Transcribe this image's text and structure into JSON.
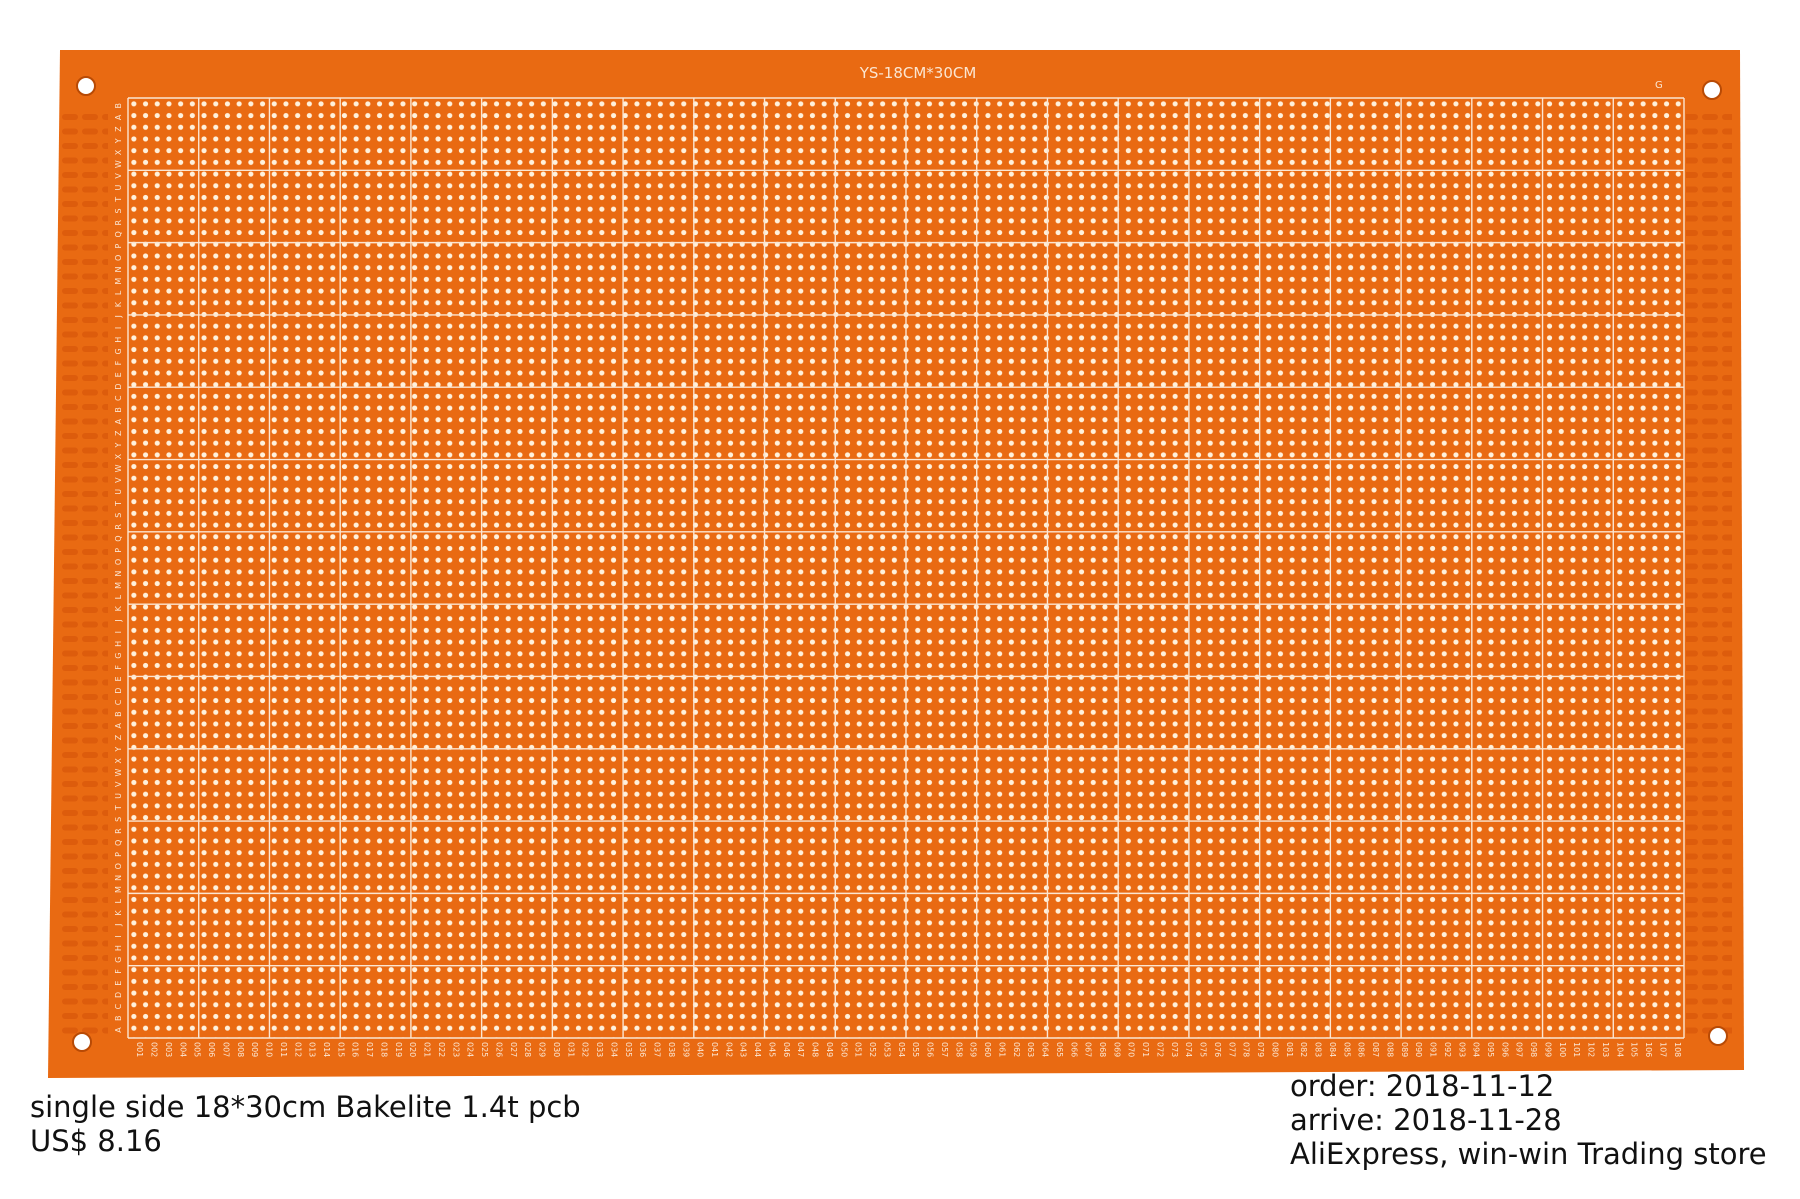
{
  "board": {
    "silkscreen_title": "YS-18CM*30CM",
    "corner_mark": "G",
    "row_letters": [
      "A",
      "B",
      "C",
      "D",
      "E",
      "F",
      "G",
      "H",
      "I",
      "J",
      "K",
      "L",
      "M",
      "N",
      "O",
      "P",
      "Q",
      "R",
      "S",
      "T",
      "U",
      "V",
      "W",
      "X",
      "Y",
      "Z"
    ],
    "column_count": 108,
    "colors": {
      "substrate": "#e96a12",
      "substrate_edge": "#d85a08",
      "pads": "#fff1dc",
      "silkscreen": "#fbe6d2",
      "background": "#ffffff"
    }
  },
  "caption_left": {
    "line1": "single side 18*30cm Bakelite 1.4t pcb",
    "line2": "US$ 8.16"
  },
  "caption_right": {
    "line1": "order: 2018-11-12",
    "line2": "arrive: 2018-11-28",
    "line3": "AliExpress, win-win Trading store"
  }
}
